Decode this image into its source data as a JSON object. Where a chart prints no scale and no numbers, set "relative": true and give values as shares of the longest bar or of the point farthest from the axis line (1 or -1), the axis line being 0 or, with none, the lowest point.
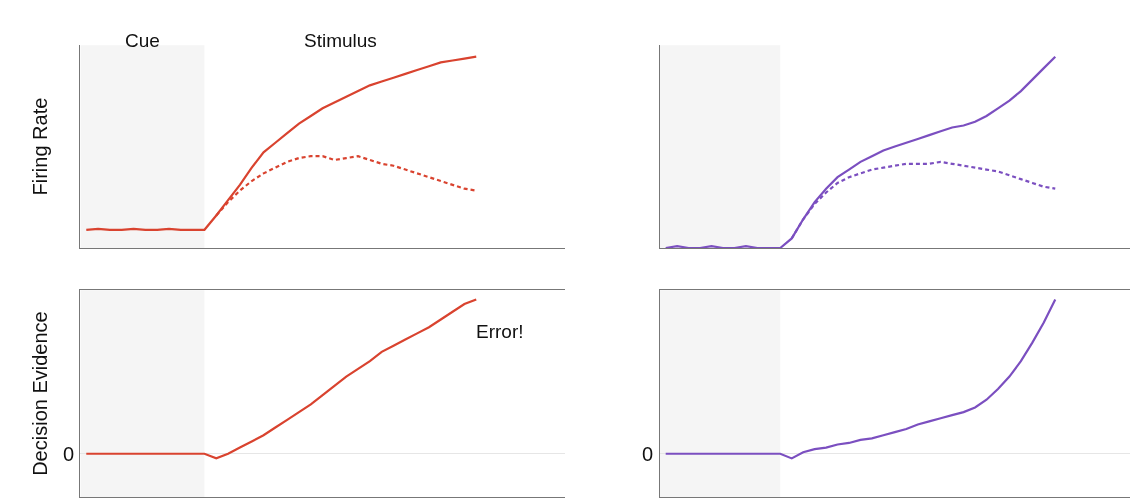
{
  "chart_data": [
    {
      "type": "line",
      "ylabel": "Firing Rate",
      "relative": true,
      "annotations": [
        "Cue",
        "Stimulus"
      ],
      "grid": false,
      "marker": "none",
      "categories": [
        null,
        null,
        null,
        null,
        null,
        null,
        null,
        null,
        null,
        null,
        null,
        null,
        null,
        null,
        null,
        null,
        null,
        null,
        null,
        null,
        null,
        null,
        null,
        null,
        null,
        null,
        null,
        null,
        null,
        null,
        null,
        null,
        null,
        null,
        null,
        null,
        null,
        null,
        null,
        null,
        null
      ],
      "series": [
        {
          "color": "#d9432f",
          "line_style": "solid",
          "values": [
            0.095,
            0.1,
            0.095,
            0.095,
            0.1,
            0.095,
            0.095,
            0.1,
            0.095,
            0.095,
            0.095,
            0.17,
            0.25,
            0.33,
            0.42,
            0.5,
            0.55,
            0.6,
            0.65,
            0.69,
            0.73,
            0.76,
            0.79,
            0.82,
            0.85,
            0.87,
            0.89,
            0.91,
            0.93,
            0.95,
            0.97,
            0.98,
            0.99,
            1.0,
            null,
            null,
            null,
            null,
            null,
            null,
            null
          ]
        },
        {
          "color": "#d9432f",
          "line_style": "dashed",
          "values": [
            null,
            null,
            null,
            null,
            null,
            null,
            null,
            null,
            null,
            null,
            null,
            0.17,
            0.24,
            0.3,
            0.35,
            0.39,
            0.42,
            0.45,
            0.47,
            0.48,
            0.48,
            0.46,
            0.47,
            0.48,
            0.46,
            0.44,
            0.43,
            0.41,
            0.39,
            0.37,
            0.35,
            0.33,
            0.31,
            0.3,
            null,
            null,
            null,
            null,
            null,
            null,
            null
          ]
        }
      ]
    },
    {
      "type": "line",
      "relative": true,
      "grid": false,
      "marker": "none",
      "categories": [
        null,
        null,
        null,
        null,
        null,
        null,
        null,
        null,
        null,
        null,
        null,
        null,
        null,
        null,
        null,
        null,
        null,
        null,
        null,
        null,
        null,
        null,
        null,
        null,
        null,
        null,
        null,
        null,
        null,
        null,
        null,
        null,
        null,
        null,
        null,
        null,
        null,
        null,
        null,
        null,
        null
      ],
      "series": [
        {
          "color": "#7b4fc0",
          "line_style": "solid",
          "values": [
            0.0,
            0.01,
            0.0,
            0.0,
            0.01,
            0.0,
            0.0,
            0.01,
            0.0,
            0.0,
            0.0,
            0.05,
            0.15,
            0.24,
            0.31,
            0.37,
            0.41,
            0.45,
            0.48,
            0.51,
            0.53,
            0.55,
            0.57,
            0.59,
            0.61,
            0.63,
            0.64,
            0.66,
            0.69,
            0.73,
            0.77,
            0.82,
            0.88,
            0.94,
            1.0,
            null,
            null,
            null,
            null,
            null,
            null
          ]
        },
        {
          "color": "#7b4fc0",
          "line_style": "dashed",
          "values": [
            null,
            null,
            null,
            null,
            null,
            null,
            null,
            null,
            null,
            null,
            null,
            0.05,
            0.15,
            0.23,
            0.29,
            0.34,
            0.37,
            0.39,
            0.41,
            0.42,
            0.43,
            0.44,
            0.44,
            0.44,
            0.45,
            0.44,
            0.43,
            0.42,
            0.41,
            0.4,
            0.38,
            0.36,
            0.34,
            0.32,
            0.31,
            null,
            null,
            null,
            null,
            null,
            null
          ]
        }
      ]
    },
    {
      "type": "line",
      "ylabel": "Decision Evidence",
      "relative": true,
      "annotations": [
        "0",
        "Error!"
      ],
      "grid": false,
      "marker": "none",
      "categories": [
        null,
        null,
        null,
        null,
        null,
        null,
        null,
        null,
        null,
        null,
        null,
        null,
        null,
        null,
        null,
        null,
        null,
        null,
        null,
        null,
        null,
        null,
        null,
        null,
        null,
        null,
        null,
        null,
        null,
        null,
        null,
        null,
        null,
        null,
        null,
        null,
        null,
        null,
        null,
        null,
        null
      ],
      "series": [
        {
          "color": "#d9432f",
          "line_style": "solid",
          "values": [
            0,
            0,
            0,
            0,
            0,
            0,
            0,
            0,
            0,
            0,
            0,
            -0.03,
            0.0,
            0.04,
            0.08,
            0.12,
            0.17,
            0.22,
            0.27,
            0.32,
            0.38,
            0.44,
            0.5,
            0.55,
            0.6,
            0.66,
            0.7,
            0.74,
            0.78,
            0.82,
            0.87,
            0.92,
            0.97,
            1.0,
            null,
            null,
            null,
            null,
            null,
            null,
            null
          ]
        }
      ]
    },
    {
      "type": "line",
      "relative": true,
      "annotations": [
        "0"
      ],
      "grid": false,
      "marker": "none",
      "categories": [
        null,
        null,
        null,
        null,
        null,
        null,
        null,
        null,
        null,
        null,
        null,
        null,
        null,
        null,
        null,
        null,
        null,
        null,
        null,
        null,
        null,
        null,
        null,
        null,
        null,
        null,
        null,
        null,
        null,
        null,
        null,
        null,
        null,
        null,
        null,
        null,
        null,
        null,
        null,
        null,
        null
      ],
      "series": [
        {
          "color": "#7b4fc0",
          "line_style": "solid",
          "values": [
            0,
            0,
            0,
            0,
            0,
            0,
            0,
            0,
            0,
            0,
            0,
            -0.03,
            0.01,
            0.03,
            0.04,
            0.06,
            0.07,
            0.09,
            0.1,
            0.12,
            0.14,
            0.16,
            0.19,
            0.21,
            0.23,
            0.25,
            0.27,
            0.3,
            0.35,
            0.42,
            0.5,
            0.6,
            0.72,
            0.85,
            1.0,
            null,
            null,
            null,
            null,
            null,
            null
          ]
        }
      ]
    }
  ]
}
